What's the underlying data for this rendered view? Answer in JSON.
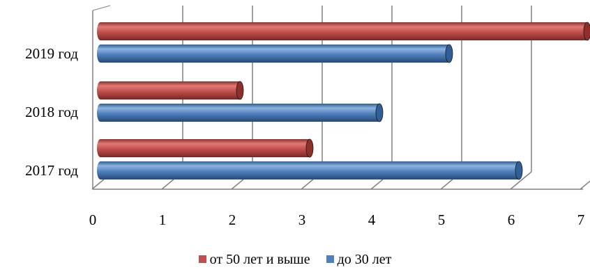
{
  "chart_data": {
    "type": "bar",
    "orientation": "horizontal",
    "categories": [
      "2017 год",
      "2018 год",
      "2019 год"
    ],
    "series": [
      {
        "name": "от 50 лет и выше",
        "values": [
          3,
          2,
          7
        ],
        "color": "#c0504d"
      },
      {
        "name": "до 30 лет",
        "values": [
          6,
          4,
          5
        ],
        "color": "#4f81bd"
      }
    ],
    "xlim": [
      0,
      7
    ],
    "x_ticks": [
      "0",
      "1",
      "2",
      "3",
      "4",
      "5",
      "6",
      "7"
    ],
    "grid": true,
    "legend_position": "bottom",
    "style": "3d-cylinder"
  }
}
